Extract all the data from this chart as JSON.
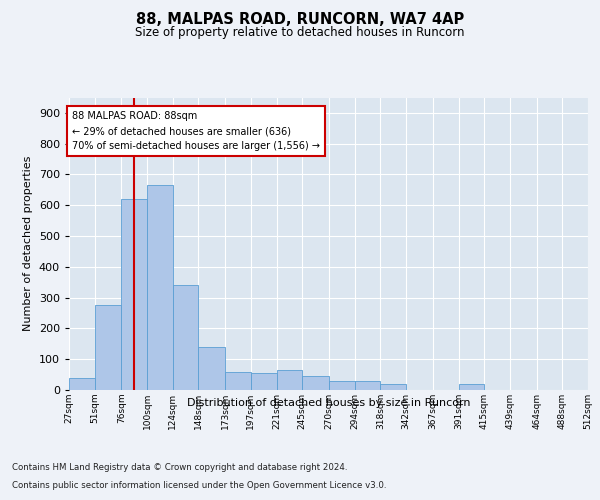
{
  "title1": "88, MALPAS ROAD, RUNCORN, WA7 4AP",
  "title2": "Size of property relative to detached houses in Runcorn",
  "xlabel": "Distribution of detached houses by size in Runcorn",
  "ylabel": "Number of detached properties",
  "bin_edges": [
    27,
    51,
    76,
    100,
    124,
    148,
    173,
    197,
    221,
    245,
    270,
    294,
    318,
    342,
    367,
    391,
    415,
    439,
    464,
    488,
    512
  ],
  "bar_heights": [
    40,
    275,
    620,
    665,
    340,
    140,
    60,
    55,
    65,
    45,
    30,
    30,
    20,
    0,
    0,
    20,
    0,
    0,
    0,
    0
  ],
  "bar_color": "#aec6e8",
  "bar_edgecolor": "#5a9fd4",
  "property_line_x": 88,
  "annotation_text1": "88 MALPAS ROAD: 88sqm",
  "annotation_text2": "← 29% of detached houses are smaller (636)",
  "annotation_text3": "70% of semi-detached houses are larger (1,556) →",
  "annotation_box_facecolor": "#ffffff",
  "annotation_box_edgecolor": "#cc0000",
  "vline_color": "#cc0000",
  "ylim": [
    0,
    950
  ],
  "yticks": [
    0,
    100,
    200,
    300,
    400,
    500,
    600,
    700,
    800,
    900
  ],
  "footer1": "Contains HM Land Registry data © Crown copyright and database right 2024.",
  "footer2": "Contains public sector information licensed under the Open Government Licence v3.0.",
  "bg_color": "#eef2f8",
  "plot_bg_color": "#dce6f0"
}
